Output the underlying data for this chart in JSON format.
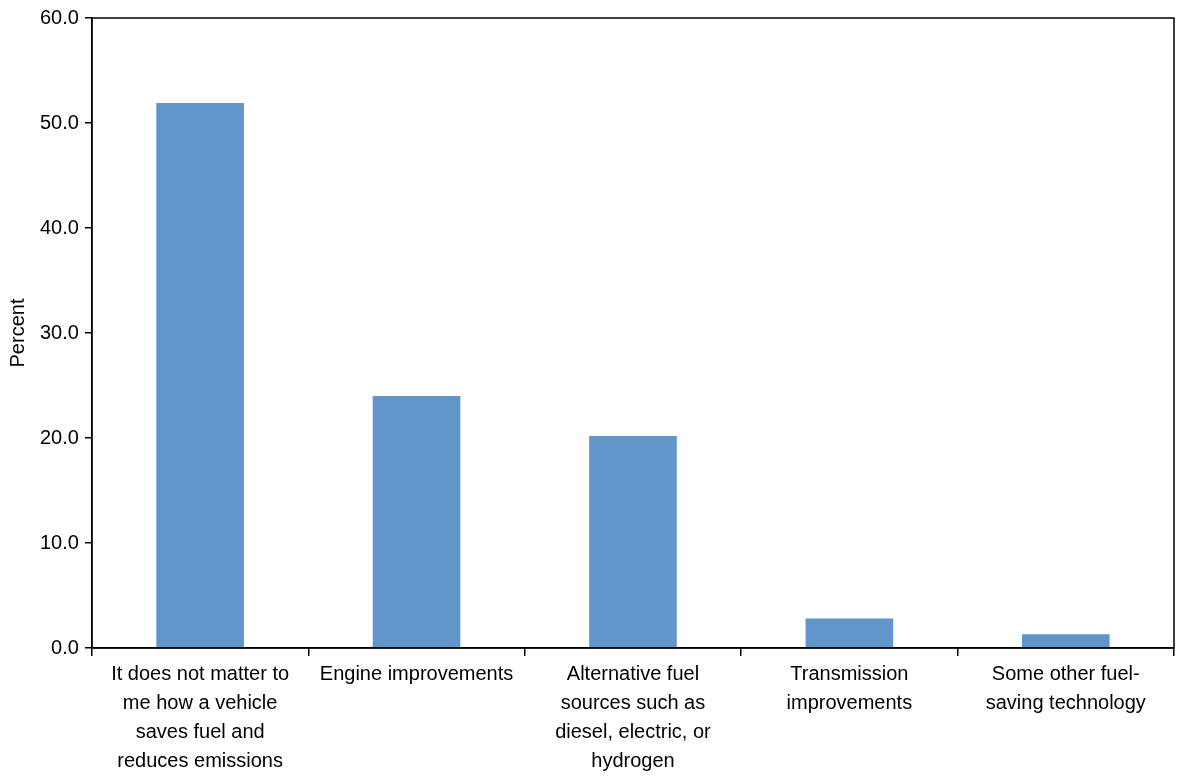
{
  "chart_data": {
    "type": "bar",
    "categories": [
      "It does not matter to me how a vehicle saves fuel and reduces emissions",
      "Engine improvements",
      "Alternative fuel sources such as diesel, electric, or hydrogen",
      "Transmission improvements",
      "Some other fuel-saving technology"
    ],
    "values": [
      51.9,
      24.0,
      20.2,
      2.8,
      1.3
    ],
    "color": "#6096c9",
    "ylabel": "Percent",
    "ylim": [
      0,
      60
    ],
    "yticks": [
      {
        "value": 0,
        "label": "0.0"
      },
      {
        "value": 10,
        "label": "10.0"
      },
      {
        "value": 20,
        "label": "20.0"
      },
      {
        "value": 30,
        "label": "30.0"
      },
      {
        "value": 40,
        "label": "40.0"
      },
      {
        "value": 50,
        "label": "50.0"
      },
      {
        "value": 60,
        "label": "60.0"
      }
    ],
    "grid": false,
    "legend": false
  }
}
